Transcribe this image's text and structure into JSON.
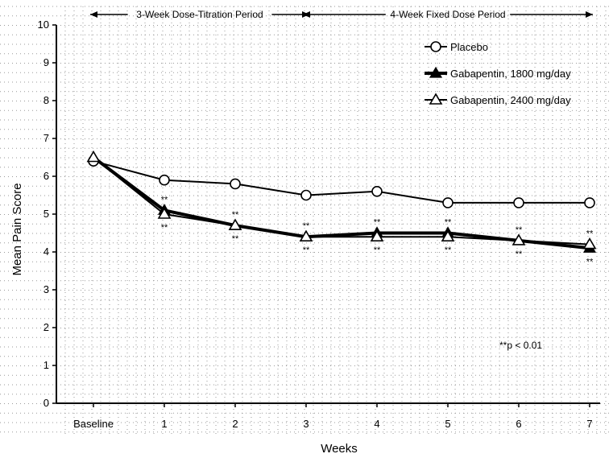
{
  "chart_data": {
    "type": "line",
    "title": "",
    "xlabel": "Weeks",
    "ylabel": "Mean Pain Score",
    "categories": [
      "Baseline",
      "1",
      "2",
      "3",
      "4",
      "5",
      "6",
      "7"
    ],
    "ylim": [
      0,
      10
    ],
    "yticks": [
      "0",
      "1",
      "2",
      "3",
      "4",
      "5",
      "6",
      "7",
      "8",
      "9",
      "10"
    ],
    "grid": "dotted",
    "legend_position": "top-right",
    "series": [
      {
        "name": "Placebo",
        "marker": "open-circle",
        "line_weight": "thin",
        "values": [
          6.4,
          5.9,
          5.8,
          5.5,
          5.6,
          5.3,
          5.3,
          5.3
        ]
      },
      {
        "name": "Gabapentin, 1800 mg/day",
        "marker": "filled-triangle",
        "line_weight": "bold",
        "values": [
          6.5,
          5.1,
          4.7,
          4.4,
          4.5,
          4.5,
          4.3,
          4.1
        ]
      },
      {
        "name": "Gabapentin, 2400 mg/day",
        "marker": "open-triangle",
        "line_weight": "thin",
        "values": [
          6.5,
          5.0,
          4.7,
          4.4,
          4.4,
          4.4,
          4.3,
          4.2
        ]
      }
    ],
    "periods": [
      {
        "label": "3-Week Dose-Titration Period",
        "from": 0,
        "to": 3
      },
      {
        "label": "4-Week Fixed Dose Period",
        "from": 3,
        "to": 7
      }
    ],
    "significance": {
      "mark": "**",
      "above": [
        1,
        2,
        3,
        4,
        5,
        6,
        7
      ],
      "below": [
        1,
        2,
        3,
        4,
        5,
        6,
        7
      ]
    },
    "note": "**p < 0.01"
  }
}
